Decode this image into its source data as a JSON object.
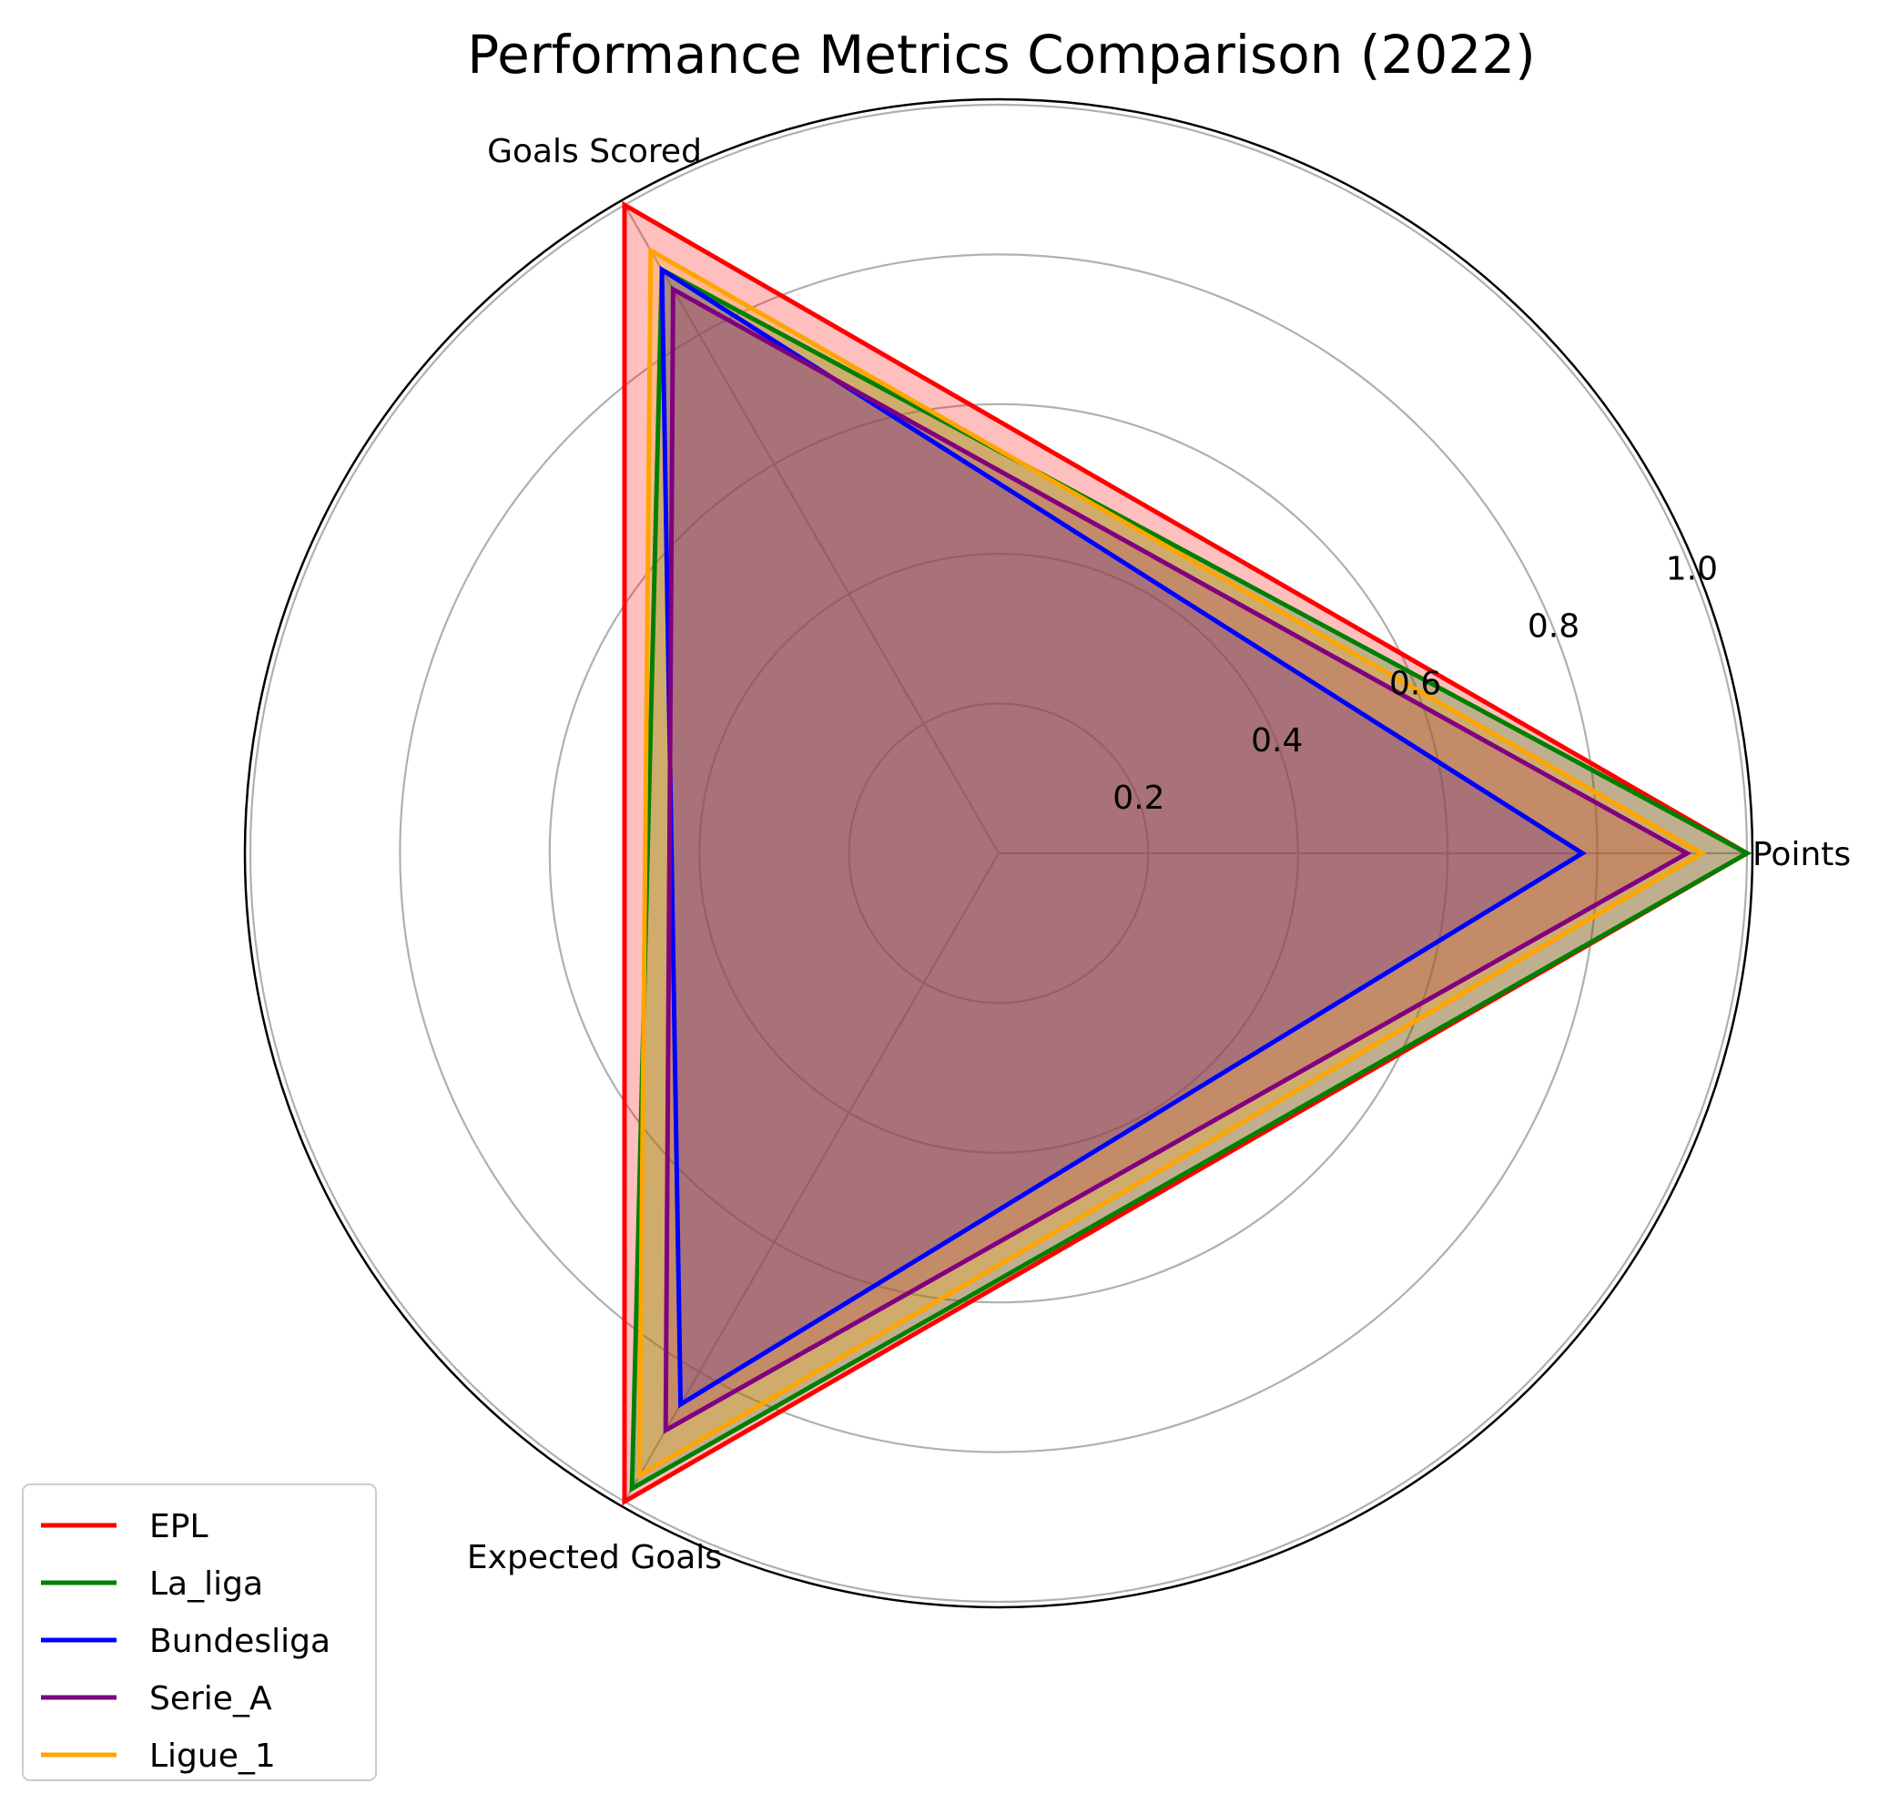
{
  "chart_data": {
    "type": "radar",
    "title": "Performance Metrics Comparison (2022)",
    "axes": [
      "Points",
      "Goals Scored",
      "Expected Goals"
    ],
    "rlim": [
      0,
      1.0
    ],
    "rticks": [
      "0.2",
      "0.4",
      "0.6",
      "0.8",
      "1.0"
    ],
    "rtick_values": [
      0.2,
      0.4,
      0.6,
      0.8,
      1.0
    ],
    "grid": true,
    "legend_position": "lower-left",
    "series": [
      {
        "name": "EPL",
        "color": "#ff0000",
        "values": [
          1.0,
          1.0,
          1.0
        ],
        "fill_opacity": 0.25
      },
      {
        "name": "La_liga",
        "color": "#008000",
        "values": [
          1.0,
          0.9,
          0.98
        ],
        "fill_opacity": 0.25
      },
      {
        "name": "Bundesliga",
        "color": "#0000ff",
        "values": [
          0.78,
          0.9,
          0.85
        ],
        "fill_opacity": 0.25
      },
      {
        "name": "Serie_A",
        "color": "#800080",
        "values": [
          0.92,
          0.87,
          0.89
        ],
        "fill_opacity": 0.25
      },
      {
        "name": "Ligue_1",
        "color": "#ffa500",
        "values": [
          0.94,
          0.93,
          0.96
        ],
        "fill_opacity": 0.25
      }
    ]
  }
}
